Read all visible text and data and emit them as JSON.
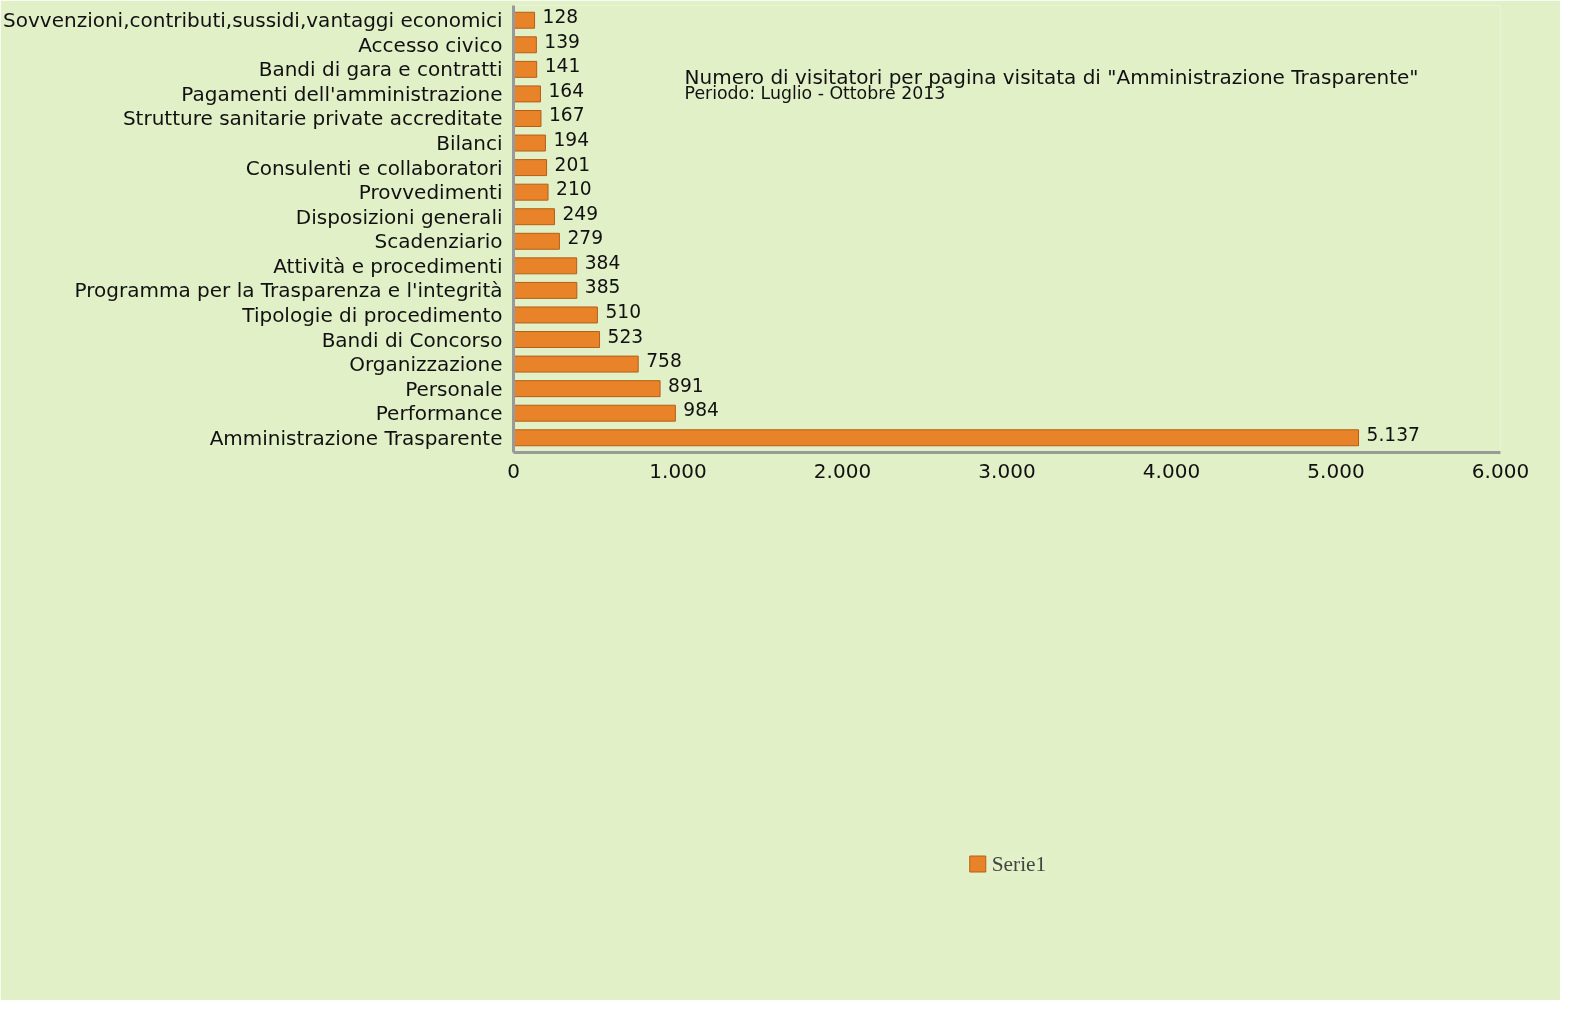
{
  "chart_data": {
    "type": "bar",
    "orientation": "horizontal",
    "categories": [
      "Sovvenzioni,contributi,sussidi,vantaggi economici",
      "Accesso civico",
      "Bandi di gara e contratti",
      "Pagamenti dell'amministrazione",
      "Strutture sanitarie private accreditate",
      "Bilanci",
      "Consulenti e collaboratori",
      "Provvedimenti",
      "Disposizioni generali",
      "Scadenziario",
      "Attività e procedimenti",
      "Programma per la Trasparenza e l'integrità",
      "Tipologie di procedimento",
      "Bandi di Concorso",
      "Organizzazione",
      "Personale",
      "Performance",
      "Amministrazione Trasparente"
    ],
    "series": [
      {
        "name": "Serie1",
        "color": "#e8832a",
        "values": [
          128,
          139,
          141,
          164,
          167,
          194,
          201,
          210,
          249,
          279,
          384,
          385,
          510,
          523,
          758,
          891,
          984,
          5137
        ],
        "value_labels": [
          "128",
          "139",
          "141",
          "164",
          "167",
          "194",
          "201",
          "210",
          "249",
          "279",
          "384",
          "385",
          "510",
          "523",
          "758",
          "891",
          "984",
          "5.137"
        ]
      }
    ],
    "xlim": [
      0,
      6000
    ],
    "xticks": [
      0,
      {
        "value": 1000,
        "label": "1.000"
      },
      {
        "value": 2000,
        "label": "2.000"
      },
      {
        "value": 3000,
        "label": "3.000"
      },
      {
        "value": 4000,
        "label": "4.000"
      },
      {
        "value": 5000,
        "label": "5.000"
      },
      {
        "value": 6000,
        "label": "6.000"
      }
    ],
    "annotations": [
      "Numero di visitatori per pagina visitata di \"Amministrazione Trasparente\"",
      "Periodo:  Luglio - Ottobre 2013"
    ],
    "legend": "bottom",
    "grid": false
  }
}
